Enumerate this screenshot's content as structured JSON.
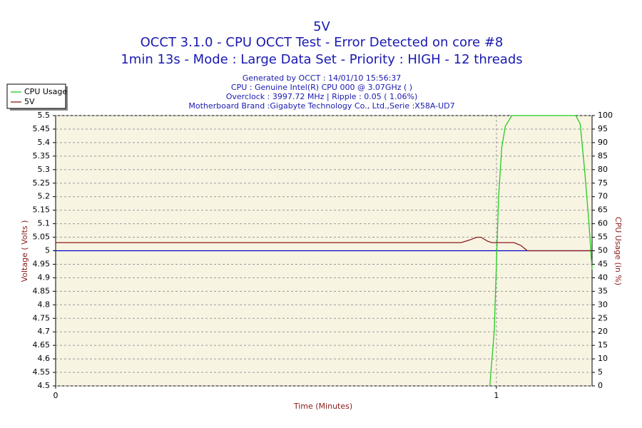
{
  "chart_data": {
    "type": "line",
    "title": "5V",
    "subtitle": [
      "OCCT 3.1.0 - CPU OCCT Test - Error Detected on core #8",
      "1min 13s - Mode : Large Data Set - Priority : HIGH - 12 threads"
    ],
    "info": [
      "Generated by OCCT : 14/01/10 15:56:37",
      "CPU : Genuine Intel(R) CPU 000 @ 3.07GHz (  )",
      "Overclock : 3997.72 MHz | Ripple : 0.05 ( 1.06%)",
      "Motherboard Brand :Gigabyte Technology Co., Ltd.,Serie :X58A-UD7"
    ],
    "x_label": "Time (Minutes)",
    "y_label": "Voltage ( Volts )",
    "y2_label": "CPU Usage (in %)",
    "xlim": [
      0,
      1.217
    ],
    "xticks": [
      0,
      1
    ],
    "ylim": [
      4.5,
      5.5
    ],
    "yticks": [
      4.5,
      4.55,
      4.6,
      4.65,
      4.7,
      4.75,
      4.8,
      4.85,
      4.9,
      4.95,
      5,
      5.05,
      5.1,
      5.15,
      5.2,
      5.25,
      5.3,
      5.35,
      5.4,
      5.45,
      5.5
    ],
    "y2lim": [
      0,
      100
    ],
    "y2ticks": [
      0,
      5,
      10,
      15,
      20,
      25,
      30,
      35,
      40,
      45,
      50,
      55,
      60,
      65,
      70,
      75,
      80,
      85,
      90,
      95,
      100
    ],
    "grid": true,
    "legend": "top-left",
    "reference_line": {
      "value": 5,
      "color": "#0000cc"
    },
    "series": [
      {
        "name": "CPU Usage",
        "color": "#22cc22",
        "axis": "y2",
        "x": [
          0.985,
          0.995,
          1.0,
          1.005,
          1.012,
          1.02,
          1.035,
          1.18,
          1.19,
          1.2,
          1.21,
          1.217
        ],
        "values": [
          0,
          20,
          45,
          70,
          88,
          96,
          100,
          100,
          97,
          80,
          60,
          43
        ]
      },
      {
        "name": "5V",
        "color": "#8b1a1a",
        "x": [
          0,
          0.92,
          0.94,
          0.955,
          0.965,
          0.98,
          0.99,
          1.04,
          1.055,
          1.07,
          1.217
        ],
        "values": [
          5.03,
          5.03,
          5.04,
          5.05,
          5.05,
          5.035,
          5.03,
          5.03,
          5.02,
          5.0,
          5.0
        ]
      }
    ]
  }
}
